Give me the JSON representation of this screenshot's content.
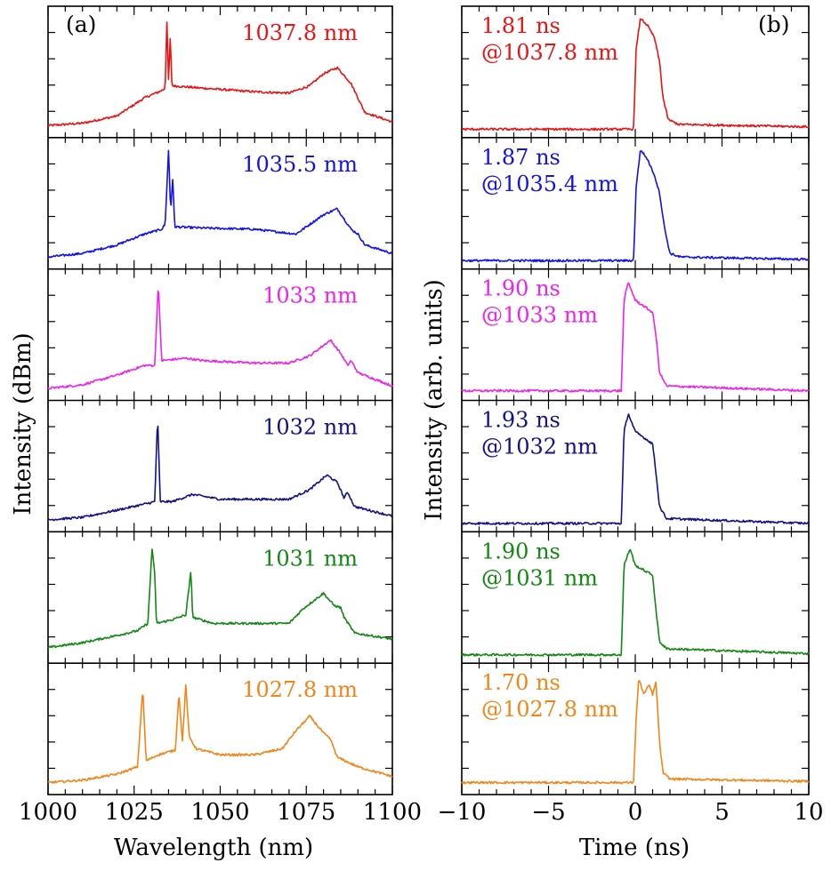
{
  "figure": {
    "left_ylabel": "Intensity (dBm)",
    "right_ylabel": "Intensity (arb. units)",
    "left_xlabel": "Wavelength (nm)",
    "right_xlabel": "Time (ns)",
    "left_tag": "(a)",
    "right_tag": "(b)"
  },
  "chart_data": [
    {
      "type": "line",
      "title": "",
      "panel": "(a)",
      "xlabel": "Wavelength (nm)",
      "ylabel": "Intensity (dBm)",
      "xlim": [
        1000,
        1100
      ],
      "x_ticks": [
        "1000",
        "1025",
        "1050",
        "1075",
        "1100"
      ],
      "y_ticks_labeled": false,
      "series": [
        {
          "name": "1037.8 nm",
          "color": "#ee1111",
          "peaks": [
            1034.5,
            1035.5
          ],
          "baseline": 0.35,
          "sig_w": 1084,
          "shape": [
            [
              1000,
              0.07
            ],
            [
              1010,
              0.09
            ],
            [
              1020,
              0.15
            ],
            [
              1028,
              0.3
            ],
            [
              1033,
              0.36
            ],
            [
              1034,
              0.38
            ],
            [
              1034.5,
              0.95
            ],
            [
              1035,
              0.45
            ],
            [
              1035.5,
              0.8
            ],
            [
              1036,
              0.4
            ],
            [
              1045,
              0.38
            ],
            [
              1060,
              0.35
            ],
            [
              1070,
              0.34
            ],
            [
              1076,
              0.4
            ],
            [
              1080,
              0.5
            ],
            [
              1084,
              0.55
            ],
            [
              1088,
              0.42
            ],
            [
              1090,
              0.3
            ],
            [
              1092,
              0.18
            ],
            [
              1100,
              0.1
            ]
          ]
        },
        {
          "name": "1035.5 nm",
          "color": "#1111ee",
          "shape": [
            [
              1000,
              0.07
            ],
            [
              1010,
              0.1
            ],
            [
              1020,
              0.17
            ],
            [
              1028,
              0.26
            ],
            [
              1033,
              0.3
            ],
            [
              1034,
              0.34
            ],
            [
              1035,
              0.95
            ],
            [
              1035.6,
              0.45
            ],
            [
              1036.2,
              0.72
            ],
            [
              1036.8,
              0.32
            ],
            [
              1045,
              0.31
            ],
            [
              1060,
              0.3
            ],
            [
              1072,
              0.26
            ],
            [
              1076,
              0.34
            ],
            [
              1080,
              0.42
            ],
            [
              1084,
              0.47
            ],
            [
              1088,
              0.3
            ],
            [
              1090,
              0.26
            ],
            [
              1092,
              0.17
            ],
            [
              1100,
              0.1
            ]
          ]
        },
        {
          "name": "1033 nm",
          "color": "#ee22ee",
          "shape": [
            [
              1000,
              0.07
            ],
            [
              1010,
              0.1
            ],
            [
              1020,
              0.18
            ],
            [
              1028,
              0.26
            ],
            [
              1031,
              0.26
            ],
            [
              1032,
              0.95
            ],
            [
              1033,
              0.3
            ],
            [
              1040,
              0.32
            ],
            [
              1045,
              0.3
            ],
            [
              1060,
              0.28
            ],
            [
              1070,
              0.28
            ],
            [
              1076,
              0.34
            ],
            [
              1082,
              0.47
            ],
            [
              1085,
              0.36
            ],
            [
              1087,
              0.26
            ],
            [
              1088,
              0.3
            ],
            [
              1090,
              0.2
            ],
            [
              1100,
              0.09
            ]
          ]
        },
        {
          "name": "1032 nm",
          "color": "#111188",
          "shape": [
            [
              1000,
              0.07
            ],
            [
              1010,
              0.09
            ],
            [
              1020,
              0.15
            ],
            [
              1028,
              0.2
            ],
            [
              1031,
              0.22
            ],
            [
              1031.8,
              0.93
            ],
            [
              1032.6,
              0.22
            ],
            [
              1036,
              0.22
            ],
            [
              1042,
              0.28
            ],
            [
              1050,
              0.24
            ],
            [
              1060,
              0.24
            ],
            [
              1070,
              0.24
            ],
            [
              1076,
              0.32
            ],
            [
              1081,
              0.44
            ],
            [
              1084,
              0.38
            ],
            [
              1086,
              0.25
            ],
            [
              1087,
              0.3
            ],
            [
              1089,
              0.18
            ],
            [
              1100,
              0.1
            ]
          ]
        },
        {
          "name": "1031 nm",
          "color": "#118811",
          "shape": [
            [
              1000,
              0.1
            ],
            [
              1010,
              0.14
            ],
            [
              1020,
              0.2
            ],
            [
              1026,
              0.24
            ],
            [
              1029,
              0.3
            ],
            [
              1030.2,
              0.93
            ],
            [
              1031,
              0.7
            ],
            [
              1031.5,
              0.3
            ],
            [
              1036,
              0.33
            ],
            [
              1040,
              0.37
            ],
            [
              1041.5,
              0.73
            ],
            [
              1042,
              0.35
            ],
            [
              1048,
              0.3
            ],
            [
              1060,
              0.3
            ],
            [
              1070,
              0.3
            ],
            [
              1074,
              0.42
            ],
            [
              1080,
              0.55
            ],
            [
              1083,
              0.45
            ],
            [
              1085,
              0.43
            ],
            [
              1086,
              0.35
            ],
            [
              1089,
              0.22
            ],
            [
              1100,
              0.17
            ]
          ]
        },
        {
          "name": "1027.8 nm",
          "color": "#f38518",
          "shape": [
            [
              1000,
              0.07
            ],
            [
              1010,
              0.09
            ],
            [
              1020,
              0.14
            ],
            [
              1026,
              0.2
            ],
            [
              1027.5,
              0.85
            ],
            [
              1028.5,
              0.25
            ],
            [
              1032,
              0.3
            ],
            [
              1037,
              0.34
            ],
            [
              1038,
              0.82
            ],
            [
              1039,
              0.4
            ],
            [
              1040,
              0.88
            ],
            [
              1041,
              0.45
            ],
            [
              1043,
              0.35
            ],
            [
              1050,
              0.3
            ],
            [
              1060,
              0.3
            ],
            [
              1068,
              0.35
            ],
            [
              1072,
              0.5
            ],
            [
              1076,
              0.62
            ],
            [
              1080,
              0.48
            ],
            [
              1082,
              0.43
            ],
            [
              1084,
              0.28
            ],
            [
              1087,
              0.24
            ],
            [
              1090,
              0.2
            ],
            [
              1100,
              0.12
            ]
          ]
        }
      ]
    },
    {
      "type": "line",
      "title": "",
      "panel": "(b)",
      "xlabel": "Time (ns)",
      "ylabel": "Intensity (arb. units)",
      "xlim": [
        -10,
        10
      ],
      "x_ticks": [
        "−10",
        "−5",
        "0",
        "5",
        "10"
      ],
      "y_ticks_labeled": false,
      "series": [
        {
          "name": "1.81 ns @1037.8 nm",
          "duration": "1.81 ns",
          "wavelength": "@1037.8 nm",
          "color": "#ee1111",
          "shape": [
            [
              -10,
              0.04
            ],
            [
              -0.1,
              0.04
            ],
            [
              0.05,
              0.7
            ],
            [
              0.3,
              0.96
            ],
            [
              0.7,
              0.9
            ],
            [
              1.1,
              0.8
            ],
            [
              1.4,
              0.6
            ],
            [
              1.6,
              0.3
            ],
            [
              1.9,
              0.12
            ],
            [
              2.5,
              0.08
            ],
            [
              10,
              0.06
            ]
          ]
        },
        {
          "name": "1.87 ns @1035.4 nm",
          "duration": "1.87 ns",
          "wavelength": "@1035.4 nm",
          "color": "#1111ee",
          "shape": [
            [
              -10,
              0.04
            ],
            [
              -0.1,
              0.04
            ],
            [
              0.05,
              0.65
            ],
            [
              0.3,
              0.96
            ],
            [
              0.7,
              0.88
            ],
            [
              1.1,
              0.75
            ],
            [
              1.4,
              0.6
            ],
            [
              1.7,
              0.3
            ],
            [
              2.0,
              0.1
            ],
            [
              2.6,
              0.07
            ],
            [
              10,
              0.05
            ]
          ]
        },
        {
          "name": "1.90 ns @1033 nm",
          "duration": "1.90 ns",
          "wavelength": "@1033 nm",
          "color": "#ee22ee",
          "shape": [
            [
              -10,
              0.05
            ],
            [
              -0.8,
              0.05
            ],
            [
              -0.65,
              0.8
            ],
            [
              -0.4,
              0.95
            ],
            [
              0.0,
              0.8
            ],
            [
              0.5,
              0.75
            ],
            [
              1.0,
              0.7
            ],
            [
              1.2,
              0.5
            ],
            [
              1.4,
              0.2
            ],
            [
              1.8,
              0.09
            ],
            [
              10,
              0.05
            ]
          ]
        },
        {
          "name": "1.93 ns @1032 nm",
          "duration": "1.93 ns",
          "wavelength": "@1032 nm",
          "color": "#111188",
          "shape": [
            [
              -10,
              0.04
            ],
            [
              -0.8,
              0.04
            ],
            [
              -0.65,
              0.8
            ],
            [
              -0.4,
              0.95
            ],
            [
              0.0,
              0.8
            ],
            [
              0.5,
              0.75
            ],
            [
              1.0,
              0.7
            ],
            [
              1.2,
              0.45
            ],
            [
              1.4,
              0.18
            ],
            [
              1.8,
              0.08
            ],
            [
              10,
              0.04
            ]
          ]
        },
        {
          "name": "1.90 ns @1031 nm",
          "duration": "1.90 ns",
          "wavelength": "@1031 nm",
          "color": "#118811",
          "shape": [
            [
              -10,
              0.04
            ],
            [
              -0.8,
              0.04
            ],
            [
              -0.65,
              0.78
            ],
            [
              -0.3,
              0.92
            ],
            [
              0.0,
              0.78
            ],
            [
              0.5,
              0.74
            ],
            [
              1.0,
              0.7
            ],
            [
              1.2,
              0.4
            ],
            [
              1.4,
              0.15
            ],
            [
              1.8,
              0.09
            ],
            [
              10,
              0.05
            ]
          ]
        },
        {
          "name": "1.70 ns @1027.8 nm",
          "duration": "1.70 ns",
          "wavelength": "@1027.8 nm",
          "color": "#f38518",
          "shape": [
            [
              -10,
              0.07
            ],
            [
              -0.1,
              0.07
            ],
            [
              0.05,
              0.6
            ],
            [
              0.2,
              0.93
            ],
            [
              0.5,
              0.8
            ],
            [
              0.8,
              0.88
            ],
            [
              1.0,
              0.8
            ],
            [
              1.2,
              0.9
            ],
            [
              1.4,
              0.4
            ],
            [
              1.6,
              0.15
            ],
            [
              2.0,
              0.1
            ],
            [
              10,
              0.08
            ]
          ]
        }
      ]
    }
  ]
}
